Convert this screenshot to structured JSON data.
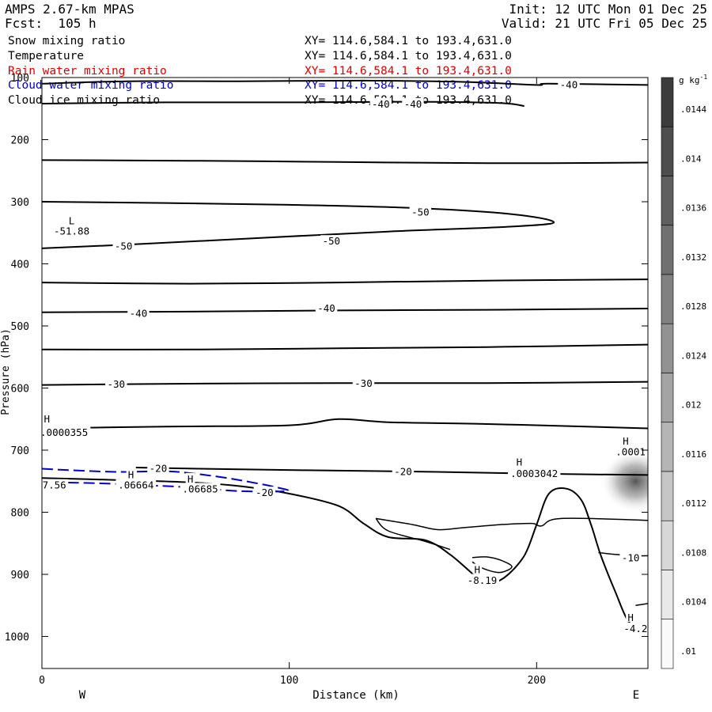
{
  "header": {
    "model": "AMPS 2.67-km MPAS",
    "forecast": "Fcst:  105 h",
    "init": "Init: 12 UTC Mon 01 Dec 25",
    "valid": "Valid: 21 UTC Fri 05 Dec 25"
  },
  "fields": [
    {
      "name": "Snow mixing ratio",
      "range": "XY= 114.6,584.1 to 193.4,631.0",
      "color": "#000000"
    },
    {
      "name": "Temperature",
      "range": "XY= 114.6,584.1 to 193.4,631.0",
      "color": "#000000"
    },
    {
      "name": "Rain water mixing ratio",
      "range": "XY= 114.6,584.1 to 193.4,631.0",
      "color": "#e00000"
    },
    {
      "name": "Cloud water mixing ratio",
      "range": "XY= 114.6,584.1 to 193.4,631.0",
      "color": "#0000cc"
    },
    {
      "name": "Cloud ice mixing ratio",
      "range": "XY= 114.6,584.1 to 193.4,631.0",
      "color": "#000000"
    }
  ],
  "chart_data": {
    "type": "contour-cross-section",
    "xlabel": "Distance (km)",
    "ylabel": "Pressure (hPa)",
    "xlim": [
      0,
      245
    ],
    "ylim": [
      1050,
      100
    ],
    "x_ticks": [
      0,
      100,
      200
    ],
    "y_ticks": [
      100,
      200,
      300,
      400,
      500,
      600,
      700,
      800,
      900,
      1000
    ],
    "direction_labels": {
      "left": "W",
      "right": "E"
    },
    "colorbar": {
      "unit": "g kg",
      "unit_exp": "-1",
      "levels": [
        ".0144",
        ".014",
        ".0136",
        ".0132",
        ".0128",
        ".0124",
        ".012",
        ".0116",
        ".0112",
        ".0108",
        ".0104",
        ".01"
      ]
    },
    "temperature_contours": [
      {
        "value": -40,
        "points": [
          [
            0,
            110
          ],
          [
            35,
            106
          ],
          [
            80,
            106
          ],
          [
            130,
            105
          ],
          [
            170,
            107
          ],
          [
            200,
            112
          ],
          [
            205,
            110
          ],
          [
            245,
            112
          ]
        ]
      },
      {
        "value": -40,
        "points": [
          [
            0,
            142
          ],
          [
            50,
            140
          ],
          [
            100,
            140
          ],
          [
            150,
            139
          ],
          [
            185,
            141
          ],
          [
            195,
            146
          ]
        ]
      },
      {
        "value": null,
        "points": [
          [
            0,
            233
          ],
          [
            60,
            234
          ],
          [
            120,
            236
          ],
          [
            180,
            238
          ],
          [
            245,
            237
          ]
        ]
      },
      {
        "value": -50,
        "points": [
          [
            0,
            300
          ],
          [
            50,
            302
          ],
          [
            100,
            305
          ],
          [
            150,
            310
          ],
          [
            190,
            320
          ],
          [
            207,
            333
          ],
          [
            190,
            340
          ],
          [
            140,
            348
          ],
          [
            90,
            358
          ],
          [
            40,
            368
          ],
          [
            0,
            375
          ]
        ]
      },
      {
        "value": -40,
        "points": [
          [
            0,
            430
          ],
          [
            60,
            432
          ],
          [
            120,
            430
          ],
          [
            180,
            427
          ],
          [
            245,
            425
          ]
        ]
      },
      {
        "value": -40,
        "points": [
          [
            0,
            478
          ],
          [
            60,
            477
          ],
          [
            120,
            475
          ],
          [
            180,
            474
          ],
          [
            245,
            472
          ]
        ]
      },
      {
        "value": null,
        "points": [
          [
            0,
            538
          ],
          [
            60,
            538
          ],
          [
            120,
            536
          ],
          [
            180,
            534
          ],
          [
            245,
            530
          ]
        ]
      },
      {
        "value": -30,
        "points": [
          [
            0,
            595
          ],
          [
            60,
            593
          ],
          [
            120,
            592
          ],
          [
            180,
            592
          ],
          [
            245,
            590
          ]
        ]
      },
      {
        "value": null,
        "points": [
          [
            0,
            665
          ],
          [
            50,
            662
          ],
          [
            100,
            660
          ],
          [
            120,
            650
          ],
          [
            140,
            655
          ],
          [
            180,
            658
          ],
          [
            220,
            662
          ],
          [
            245,
            665
          ]
        ]
      },
      {
        "value": -20,
        "points": [
          [
            38,
            728
          ],
          [
            80,
            731
          ],
          [
            120,
            733
          ],
          [
            160,
            735
          ],
          [
            200,
            738
          ],
          [
            245,
            740
          ]
        ]
      },
      {
        "value": -20,
        "points": [
          [
            0,
            745
          ],
          [
            30,
            748
          ],
          [
            60,
            752
          ],
          [
            80,
            758
          ],
          [
            100,
            770
          ],
          [
            120,
            790
          ],
          [
            130,
            818
          ],
          [
            140,
            840
          ],
          [
            155,
            845
          ],
          [
            165,
            868
          ],
          [
            175,
            902
          ],
          [
            180,
            915
          ],
          [
            187,
            905
          ],
          [
            195,
            870
          ],
          [
            200,
            820
          ],
          [
            205,
            770
          ],
          [
            212,
            762
          ],
          [
            218,
            780
          ],
          [
            222,
            820
          ],
          [
            226,
            870
          ],
          [
            232,
            930
          ],
          [
            237,
            975
          ],
          [
            242,
            985
          ],
          [
            245,
            985
          ]
        ]
      }
    ],
    "snow_contours": [
      {
        "points": [
          [
            135,
            810
          ],
          [
            150,
            820
          ],
          [
            160,
            828
          ],
          [
            170,
            825
          ],
          [
            185,
            820
          ],
          [
            198,
            818
          ],
          [
            202,
            822
          ],
          [
            210,
            810
          ],
          [
            245,
            813
          ]
        ]
      },
      {
        "points": [
          [
            135,
            810
          ],
          [
            140,
            830
          ],
          [
            155,
            847
          ],
          [
            165,
            860
          ]
        ]
      },
      {
        "points": [
          [
            174,
            873
          ],
          [
            180,
            872
          ],
          [
            186,
            878
          ],
          [
            190,
            888
          ],
          [
            185,
            897
          ],
          [
            178,
            890
          ],
          [
            174,
            880
          ]
        ]
      },
      {
        "points": [
          [
            225,
            865
          ],
          [
            232,
            868
          ],
          [
            240,
            870
          ],
          [
            245,
            870
          ]
        ]
      },
      {
        "points": [
          [
            240,
            950
          ],
          [
            245,
            947
          ]
        ]
      }
    ],
    "cloud_water_contours": [
      {
        "points": [
          [
            0,
            730
          ],
          [
            10,
            732
          ],
          [
            30,
            735
          ],
          [
            50,
            734
          ],
          [
            62,
            738
          ],
          [
            75,
            745
          ],
          [
            85,
            752
          ],
          [
            95,
            760
          ],
          [
            99,
            766
          ],
          [
            80,
            766
          ],
          [
            60,
            760
          ],
          [
            40,
            756
          ],
          [
            20,
            753
          ],
          [
            5,
            752
          ]
        ]
      }
    ],
    "ice_shading": {
      "x_km": 240,
      "p_hpa": 750,
      "max": 0.0144
    },
    "labels": [
      {
        "text": "-40",
        "x_km": 137,
        "p_hpa": 143
      },
      {
        "text": "-40",
        "x_km": 150,
        "p_hpa": 143
      },
      {
        "text": "-40",
        "x_km": 213,
        "p_hpa": 112
      },
      {
        "text": "-50",
        "x_km": 153,
        "p_hpa": 317
      },
      {
        "text": "-50",
        "x_km": 117,
        "p_hpa": 364
      },
      {
        "text": "-50",
        "x_km": 33,
        "p_hpa": 372
      },
      {
        "text": "-40",
        "x_km": 115,
        "p_hpa": 472
      },
      {
        "text": "-40",
        "x_km": 39,
        "p_hpa": 480
      },
      {
        "text": "-30",
        "x_km": 30,
        "p_hpa": 594
      },
      {
        "text": "-30",
        "x_km": 130,
        "p_hpa": 593
      },
      {
        "text": "-20",
        "x_km": 47,
        "p_hpa": 730
      },
      {
        "text": "-20",
        "x_km": 146,
        "p_hpa": 735
      },
      {
        "text": "-20",
        "x_km": 90,
        "p_hpa": 769
      },
      {
        "text": "-10",
        "x_km": 238,
        "p_hpa": 874
      },
      {
        "text": "H",
        "x_km": 2,
        "p_hpa": 650
      },
      {
        "text": ".0000355",
        "x_km": 9,
        "p_hpa": 672
      },
      {
        "text": "L",
        "x_km": 12,
        "p_hpa": 331
      },
      {
        "text": "-51.88",
        "x_km": 12,
        "p_hpa": 348
      },
      {
        "text": "H",
        "x_km": 36,
        "p_hpa": 740
      },
      {
        "text": ".06664",
        "x_km": 38,
        "p_hpa": 757
      },
      {
        "text": "H",
        "x_km": 60,
        "p_hpa": 747
      },
      {
        "text": ".06685",
        "x_km": 64,
        "p_hpa": 763
      },
      {
        "text": "7.56",
        "x_km": 5,
        "p_hpa": 757
      },
      {
        "text": "H",
        "x_km": 193,
        "p_hpa": 720
      },
      {
        "text": ".0003042",
        "x_km": 199,
        "p_hpa": 738
      },
      {
        "text": "H",
        "x_km": 236,
        "p_hpa": 686
      },
      {
        "text": ".0001",
        "x_km": 238,
        "p_hpa": 703
      },
      {
        "text": "H",
        "x_km": 176,
        "p_hpa": 893
      },
      {
        "text": "-8.19",
        "x_km": 178,
        "p_hpa": 910
      },
      {
        "text": "H",
        "x_km": 238,
        "p_hpa": 970
      },
      {
        "text": "-4.2",
        "x_km": 240,
        "p_hpa": 988
      }
    ]
  }
}
